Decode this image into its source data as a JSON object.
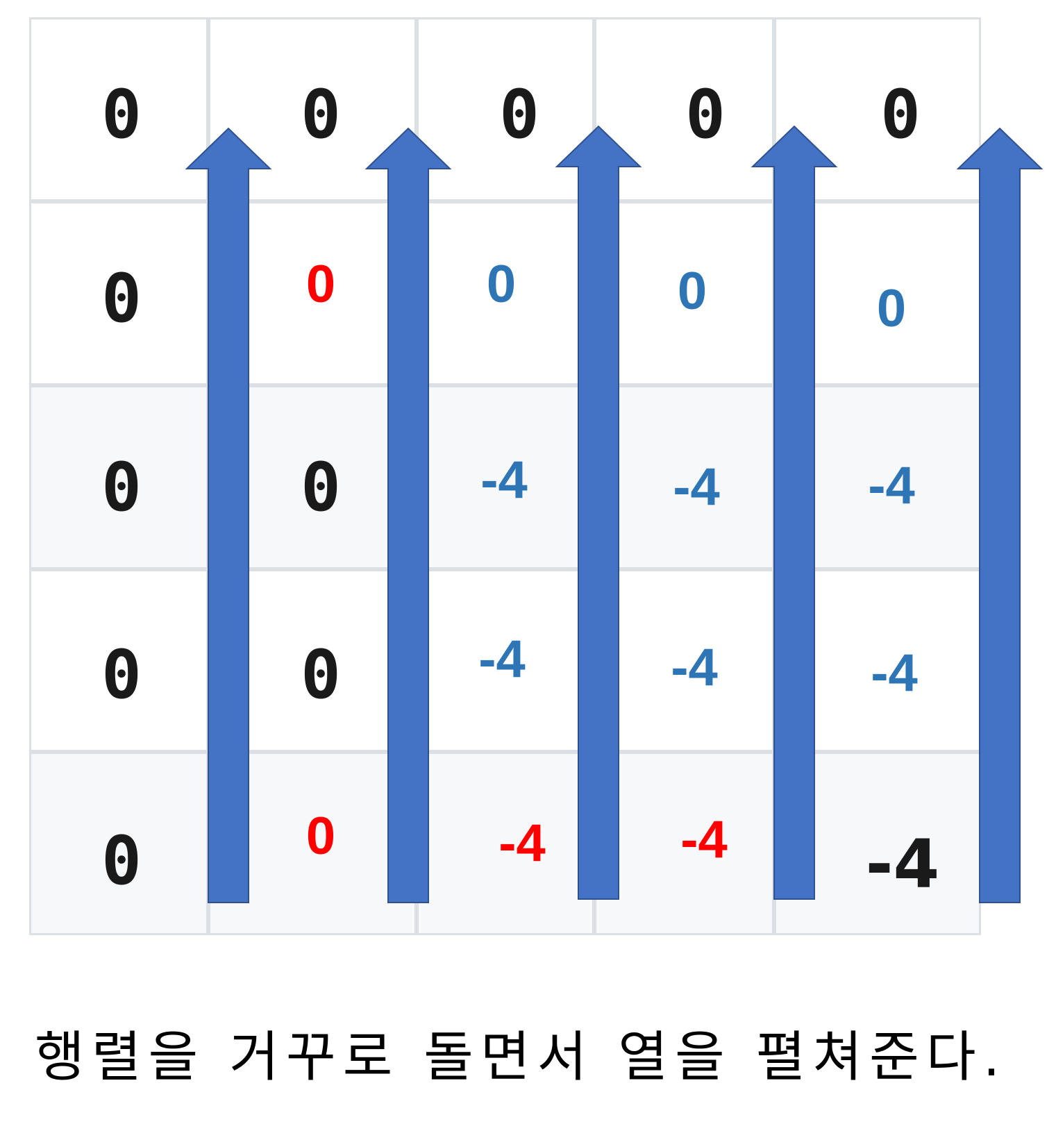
{
  "matrix": {
    "rows": [
      [
        {
          "v": "0",
          "c": "black"
        },
        {
          "v": "0",
          "c": "black"
        },
        {
          "v": "0",
          "c": "black"
        },
        {
          "v": "0",
          "c": "black"
        },
        {
          "v": "0",
          "c": "black"
        }
      ],
      [
        {
          "v": "0",
          "c": "black"
        },
        {
          "v": "0",
          "c": "red"
        },
        {
          "v": "0",
          "c": "blue"
        },
        {
          "v": "0",
          "c": "blue"
        },
        {
          "v": "0",
          "c": "blue"
        }
      ],
      [
        {
          "v": "0",
          "c": "black"
        },
        {
          "v": "0",
          "c": "black"
        },
        {
          "v": "-4",
          "c": "blue"
        },
        {
          "v": "-4",
          "c": "blue"
        },
        {
          "v": "-4",
          "c": "blue"
        }
      ],
      [
        {
          "v": "0",
          "c": "black"
        },
        {
          "v": "0",
          "c": "black"
        },
        {
          "v": "-4",
          "c": "blue"
        },
        {
          "v": "-4",
          "c": "blue"
        },
        {
          "v": "-4",
          "c": "blue"
        }
      ],
      [
        {
          "v": "0",
          "c": "black"
        },
        {
          "v": "0",
          "c": "red"
        },
        {
          "v": "-4",
          "c": "red"
        },
        {
          "v": "-4",
          "c": "red"
        },
        {
          "v": "-4",
          "c": "black"
        }
      ]
    ]
  },
  "arrow_count": 5,
  "colors": {
    "arrow": "#4472c4",
    "blue_text": "#2e75b6",
    "red_text": "#ff0000",
    "grid_line": "#dcdfe3"
  },
  "caption": "행렬을 거꾸로 돌면서 열을 펼쳐준다."
}
